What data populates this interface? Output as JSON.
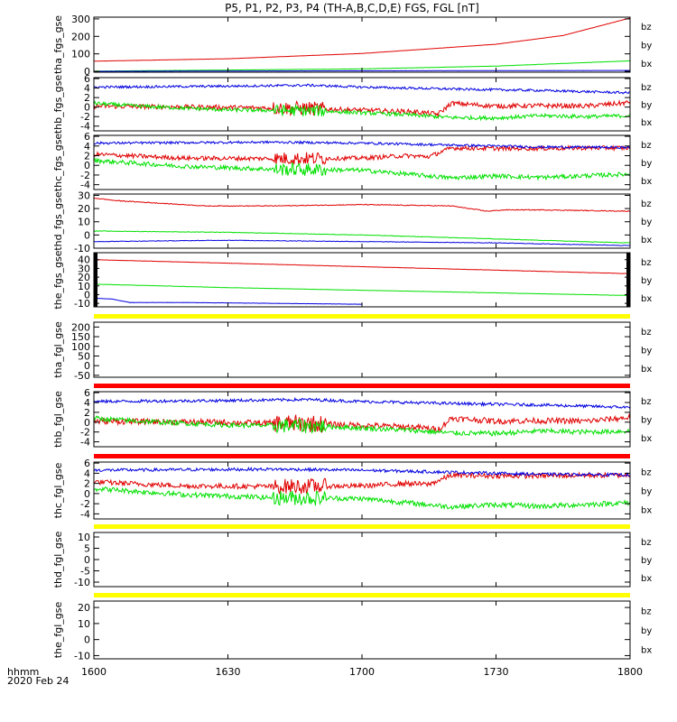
{
  "title": "P5, P1, P2, P3, P4 (TH-A,B,C,D,E) FGS, FGL [nT]",
  "footer": {
    "time_label": "hhmm",
    "date_label": "2020 Feb 24"
  },
  "colors": {
    "bz": "#e00000",
    "by": "#00e000",
    "bx": "#0000e0",
    "bar_red": "#ff0000",
    "bar_yellow": "#ffff00",
    "bar_black": "#000000"
  },
  "chart_data": {
    "type": "line",
    "xlabel": "",
    "x_ticks": [
      "1600",
      "1630",
      "1700",
      "1730",
      "1800"
    ],
    "x_minutes": [
      0,
      30,
      60,
      90,
      120
    ],
    "xlim": [
      0,
      120
    ],
    "panels": [
      {
        "ylabel": "tha_fgs_gse",
        "ylim": [
          -5,
          310
        ],
        "yticks": [
          "300",
          "200",
          "100",
          "0"
        ],
        "ytick_values": [
          300,
          200,
          100,
          0
        ],
        "grid_bottom": 0,
        "top_bar": null,
        "legend": [
          "bz",
          "by",
          "bx"
        ],
        "series": [
          {
            "name": "bz",
            "keyframes": [
              [
                0,
                58
              ],
              [
                30,
                72
              ],
              [
                60,
                102
              ],
              [
                90,
                155
              ],
              [
                105,
                205
              ],
              [
                120,
                305
              ]
            ],
            "noise": 0.4
          },
          {
            "name": "by",
            "keyframes": [
              [
                0,
                1
              ],
              [
                60,
                14
              ],
              [
                90,
                30
              ],
              [
                120,
                60
              ]
            ],
            "noise": 0.5
          },
          {
            "name": "bx",
            "keyframes": [
              [
                0,
                0
              ],
              [
                60,
                3
              ],
              [
                120,
                5
              ]
            ],
            "noise": 0.3
          }
        ]
      },
      {
        "ylabel": "thb_fgs_gse",
        "ylim": [
          -5,
          6.2
        ],
        "yticks": [
          "6",
          "4",
          "2",
          "0",
          "-2",
          "-4"
        ],
        "ytick_values": [
          6,
          4,
          2,
          0,
          -2,
          -4
        ],
        "top_bar": null,
        "legend": [
          "bz",
          "by",
          "bx"
        ],
        "series": [
          {
            "name": "bz",
            "keyframes": [
              [
                0,
                0.2
              ],
              [
                25,
                0
              ],
              [
                48,
                -0.3
              ],
              [
                72,
                -1.0
              ],
              [
                77,
                -1.5
              ],
              [
                80,
                0.8
              ],
              [
                90,
                0.2
              ],
              [
                100,
                0.3
              ],
              [
                110,
                0.2
              ],
              [
                118,
                0.8
              ],
              [
                120,
                1.0
              ]
            ],
            "noise": 0.5
          },
          {
            "name": "by",
            "keyframes": [
              [
                0,
                0.8
              ],
              [
                10,
                0.2
              ],
              [
                30,
                -0.6
              ],
              [
                50,
                -0.8
              ],
              [
                70,
                -1.6
              ],
              [
                80,
                -2.2
              ],
              [
                90,
                -2.3
              ],
              [
                100,
                -1.8
              ],
              [
                110,
                -2.0
              ],
              [
                120,
                -1.8
              ]
            ],
            "noise": 0.4
          },
          {
            "name": "bx",
            "keyframes": [
              [
                0,
                4.2
              ],
              [
                30,
                4.4
              ],
              [
                48,
                4.6
              ],
              [
                60,
                4.2
              ],
              [
                80,
                3.8
              ],
              [
                100,
                3.5
              ],
              [
                120,
                3.0
              ]
            ],
            "noise": 0.25
          }
        ]
      },
      {
        "ylabel": "thc_fgs_gse",
        "ylim": [
          -5,
          6.2
        ],
        "yticks": [
          "6",
          "4",
          "2",
          "0",
          "-2",
          "-4"
        ],
        "ytick_values": [
          6,
          4,
          2,
          0,
          -2,
          -4
        ],
        "top_bar": null,
        "legend": [
          "bz",
          "by",
          "bx"
        ],
        "series": [
          {
            "name": "bz",
            "keyframes": [
              [
                0,
                2.3
              ],
              [
                20,
                1.5
              ],
              [
                40,
                1.4
              ],
              [
                60,
                1.5
              ],
              [
                70,
                2.0
              ],
              [
                75,
                1.8
              ],
              [
                80,
                3.6
              ],
              [
                90,
                3.5
              ],
              [
                100,
                3.5
              ],
              [
                110,
                3.6
              ],
              [
                120,
                3.6
              ]
            ],
            "noise": 0.45
          },
          {
            "name": "by",
            "keyframes": [
              [
                0,
                1.0
              ],
              [
                20,
                -0.2
              ],
              [
                40,
                -0.8
              ],
              [
                60,
                -1.0
              ],
              [
                80,
                -2.6
              ],
              [
                90,
                -2.2
              ],
              [
                100,
                -2.5
              ],
              [
                120,
                -1.8
              ]
            ],
            "noise": 0.45
          },
          {
            "name": "bx",
            "keyframes": [
              [
                0,
                4.6
              ],
              [
                40,
                4.8
              ],
              [
                60,
                4.6
              ],
              [
                80,
                4.2
              ],
              [
                100,
                3.8
              ],
              [
                120,
                3.7
              ]
            ],
            "noise": 0.25
          }
        ]
      },
      {
        "ylabel": "thd_fgs_gse",
        "ylim": [
          -10,
          31
        ],
        "yticks": [
          "30",
          "20",
          "10",
          "0",
          "-10"
        ],
        "ytick_values": [
          30,
          20,
          10,
          0,
          -10
        ],
        "top_bar": null,
        "legend": [
          "bz",
          "by",
          "bx"
        ],
        "series": [
          {
            "name": "bz",
            "keyframes": [
              [
                0,
                28
              ],
              [
                5,
                26
              ],
              [
                10,
                25
              ],
              [
                25,
                22
              ],
              [
                40,
                22
              ],
              [
                60,
                23
              ],
              [
                80,
                22
              ],
              [
                88,
                18
              ],
              [
                92,
                19
              ],
              [
                100,
                19
              ],
              [
                120,
                18
              ]
            ],
            "noise": 0.3
          },
          {
            "name": "by",
            "keyframes": [
              [
                0,
                3
              ],
              [
                30,
                2
              ],
              [
                60,
                0
              ],
              [
                90,
                -3
              ],
              [
                120,
                -6
              ]
            ],
            "noise": 0.2
          },
          {
            "name": "bx",
            "keyframes": [
              [
                0,
                -5
              ],
              [
                30,
                -4
              ],
              [
                60,
                -5
              ],
              [
                90,
                -6
              ],
              [
                120,
                -8
              ]
            ],
            "noise": 0.2
          }
        ]
      },
      {
        "ylabel": "the_fgs_gse",
        "ylim": [
          -14,
          48
        ],
        "yticks": [
          "40",
          "30",
          "20",
          "10",
          "0",
          "-10"
        ],
        "ytick_values": [
          40,
          30,
          20,
          10,
          0,
          -10
        ],
        "top_bar": null,
        "side_ticks": true,
        "legend": [
          "bz",
          "by",
          "bx"
        ],
        "series": [
          {
            "name": "bz",
            "keyframes": [
              [
                0,
                40
              ],
              [
                30,
                36
              ],
              [
                60,
                32
              ],
              [
                90,
                28
              ],
              [
                120,
                24
              ]
            ],
            "noise": 0.15
          },
          {
            "name": "by",
            "keyframes": [
              [
                0,
                12
              ],
              [
                30,
                8
              ],
              [
                60,
                5
              ],
              [
                90,
                2
              ],
              [
                120,
                -1
              ]
            ],
            "noise": 0.15
          },
          {
            "name": "bx",
            "keyframes": [
              [
                0,
                -4
              ],
              [
                4,
                -5
              ],
              [
                8,
                -9
              ],
              [
                20,
                -9
              ],
              [
                40,
                -10
              ],
              [
                60,
                -11
              ]
            ],
            "noise": 0.15
          }
        ]
      },
      {
        "ylabel": "tha_fgl_gse",
        "ylim": [
          -60,
          225
        ],
        "yticks": [
          "200",
          "150",
          "100",
          "50",
          "0",
          "-50"
        ],
        "ytick_values": [
          200,
          150,
          100,
          50,
          0,
          -50
        ],
        "top_bar": "yellow",
        "legend": [
          "bz",
          "by",
          "bx"
        ],
        "series": []
      },
      {
        "ylabel": "thb_fgl_gse",
        "ylim": [
          -5,
          6.2
        ],
        "yticks": [
          "6",
          "4",
          "2",
          "0",
          "-2",
          "-4"
        ],
        "ytick_values": [
          6,
          4,
          2,
          0,
          -2,
          -4
        ],
        "top_bar": "red",
        "legend": [
          "bz",
          "by",
          "bx"
        ],
        "series": [
          {
            "name": "bz",
            "keyframes": [
              [
                0,
                0.2
              ],
              [
                25,
                0
              ],
              [
                48,
                -0.3
              ],
              [
                72,
                -1.0
              ],
              [
                77,
                -1.5
              ],
              [
                80,
                0.8
              ],
              [
                90,
                0.2
              ],
              [
                100,
                0.3
              ],
              [
                110,
                0.2
              ],
              [
                118,
                0.8
              ],
              [
                120,
                1.0
              ]
            ],
            "noise": 0.6
          },
          {
            "name": "by",
            "keyframes": [
              [
                0,
                0.8
              ],
              [
                10,
                0.2
              ],
              [
                30,
                -0.6
              ],
              [
                50,
                -0.8
              ],
              [
                70,
                -1.6
              ],
              [
                80,
                -2.2
              ],
              [
                90,
                -2.3
              ],
              [
                100,
                -1.8
              ],
              [
                110,
                -2.0
              ],
              [
                120,
                -1.8
              ]
            ],
            "noise": 0.5
          },
          {
            "name": "bx",
            "keyframes": [
              [
                0,
                4.2
              ],
              [
                30,
                4.4
              ],
              [
                48,
                4.6
              ],
              [
                60,
                4.2
              ],
              [
                80,
                3.8
              ],
              [
                100,
                3.5
              ],
              [
                120,
                3.0
              ]
            ],
            "noise": 0.3
          }
        ]
      },
      {
        "ylabel": "thc_fgl_gse",
        "ylim": [
          -5,
          6.2
        ],
        "yticks": [
          "6",
          "4",
          "2",
          "0",
          "-2",
          "-4"
        ],
        "ytick_values": [
          6,
          4,
          2,
          0,
          -2,
          -4
        ],
        "top_bar": "red",
        "legend": [
          "bz",
          "by",
          "bx"
        ],
        "series": [
          {
            "name": "bz",
            "keyframes": [
              [
                0,
                2.3
              ],
              [
                20,
                1.5
              ],
              [
                40,
                1.4
              ],
              [
                60,
                1.5
              ],
              [
                70,
                2.0
              ],
              [
                75,
                1.8
              ],
              [
                80,
                3.6
              ],
              [
                90,
                3.5
              ],
              [
                100,
                3.5
              ],
              [
                110,
                3.6
              ],
              [
                120,
                3.6
              ]
            ],
            "noise": 0.5
          },
          {
            "name": "by",
            "keyframes": [
              [
                0,
                1.0
              ],
              [
                20,
                -0.2
              ],
              [
                40,
                -0.8
              ],
              [
                60,
                -1.0
              ],
              [
                80,
                -2.6
              ],
              [
                90,
                -2.2
              ],
              [
                100,
                -2.5
              ],
              [
                120,
                -1.8
              ]
            ],
            "noise": 0.5
          },
          {
            "name": "bx",
            "keyframes": [
              [
                0,
                4.6
              ],
              [
                40,
                4.8
              ],
              [
                60,
                4.6
              ],
              [
                80,
                4.2
              ],
              [
                100,
                3.8
              ],
              [
                120,
                3.7
              ]
            ],
            "noise": 0.3
          }
        ]
      },
      {
        "ylabel": "thd_fgl_gse",
        "ylim": [
          -12,
          12
        ],
        "yticks": [
          "10",
          "5",
          "0",
          "-5",
          "-10"
        ],
        "ytick_values": [
          10,
          5,
          0,
          -5,
          -10
        ],
        "top_bar": "yellow",
        "legend": [
          "bz",
          "by",
          "bx"
        ],
        "series": []
      },
      {
        "ylabel": "the_fgl_gse",
        "ylim": [
          -12,
          24
        ],
        "yticks": [
          "20",
          "10",
          "0",
          "-10"
        ],
        "ytick_values": [
          20,
          10,
          0,
          -10
        ],
        "top_bar": "yellow",
        "legend": [
          "bz",
          "by",
          "bx"
        ],
        "series": []
      }
    ]
  }
}
